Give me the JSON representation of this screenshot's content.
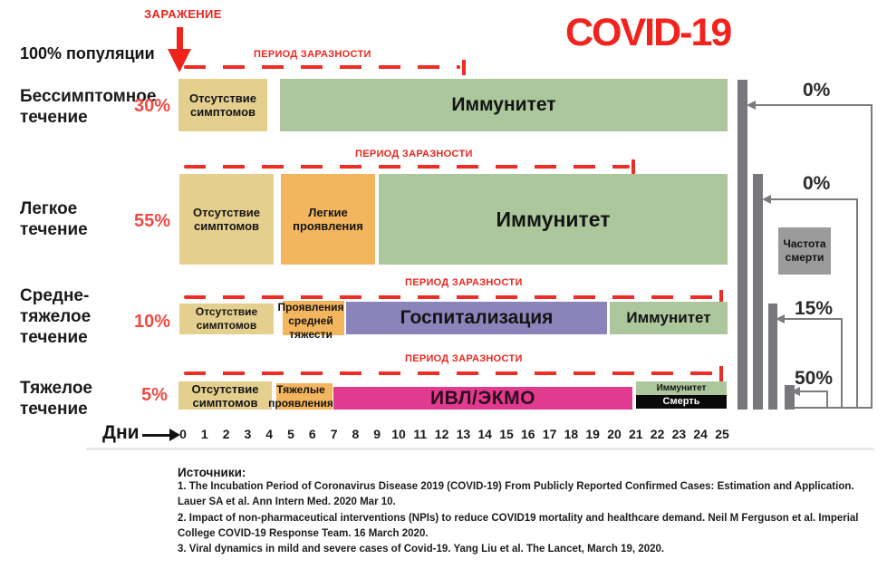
{
  "header": {
    "infection_label": "ЗАРАЖЕНИЕ",
    "population_label": "100% популяции",
    "title": "COVID-19"
  },
  "infectious_period_label": "ПЕРИОД ЗАРАЗНОСТИ",
  "rows": [
    {
      "label": "Бессимптомное\nтечение",
      "pct": "30%",
      "segments": [
        {
          "label": "Отсутствие\nсимптомов"
        },
        {
          "label": "Иммунитет"
        }
      ]
    },
    {
      "label": "Легкое\nтечение",
      "pct": "55%",
      "segments": [
        {
          "label": "Отсутствие\nсимптомов"
        },
        {
          "label": "Легкие\nпроявления"
        },
        {
          "label": "Иммунитет"
        }
      ]
    },
    {
      "label": "Средне-\nтяжелое\nтечение",
      "pct": "10%",
      "segments": [
        {
          "label": "Отсутствие\nсимптомов"
        },
        {
          "label": "Проявления\nсредней\nтяжести"
        },
        {
          "label": "Госпитализация"
        },
        {
          "label": "Иммунитет"
        }
      ]
    },
    {
      "label": "Тяжелое\nтечение",
      "pct": "5%",
      "segments": [
        {
          "label": "Отсутствие\nсимптомов"
        },
        {
          "label": "Тяжелые\nпроявления"
        },
        {
          "label": "ИВЛ/ЭКМО"
        },
        {
          "label": "Иммунитет"
        },
        {
          "label": "Смерть"
        }
      ]
    }
  ],
  "axis": {
    "label": "Дни",
    "days": [
      0,
      1,
      2,
      3,
      4,
      5,
      6,
      7,
      8,
      9,
      10,
      11,
      12,
      13,
      14,
      15,
      16,
      17,
      18,
      19,
      20,
      21,
      22,
      23,
      24,
      25
    ]
  },
  "death_chart": {
    "labels": [
      "0%",
      "0%",
      "15%",
      "50%"
    ],
    "legend": "Частота\nсмерти"
  },
  "sources": {
    "heading": "Источники:",
    "items": [
      "1. The Incubation Period of Coronavirus Disease 2019 (COVID-19) From Publicly Reported Confirmed Cases: Estimation and Application. Lauer SA et al. Ann Intern Med. 2020 Mar 10.",
      "2. Impact of non-pharmaceutical interventions (NPIs) to reduce COVID19 mortality and healthcare demand. Neil M Ferguson et al. Imperial College COVID-19 Response Team. 16 March 2020.",
      "3. Viral dynamics in mild and severe cases of Covid-19. Yang Liu et al. The Lancet, March 19, 2020."
    ]
  },
  "colors": {
    "accent_red": "#ee241c",
    "tan": "#e5cf8e",
    "orange": "#f3b55e",
    "green": "#abc79b",
    "purple": "#8a84ba",
    "magenta": "#e23a8e",
    "black_strip": "#0a0a0a",
    "bar_gray": "#77777c",
    "legend_gray": "#9b9b9b"
  },
  "chart_data": {
    "type": "bar",
    "subtype": "horizontal-gantt-timeline",
    "title": "COVID-19",
    "xlabel": "Дни",
    "x_range": [
      0,
      25
    ],
    "x_ticks": [
      0,
      1,
      2,
      3,
      4,
      5,
      6,
      7,
      8,
      9,
      10,
      11,
      12,
      13,
      14,
      15,
      16,
      17,
      18,
      19,
      20,
      21,
      22,
      23,
      24,
      25
    ],
    "population_total_label": "100% популяции",
    "infection_event_day": 0,
    "rows": [
      {
        "label": "Бессимптомное течение",
        "population_share_pct": 30,
        "death_rate_pct": 0,
        "infectious_period_days": [
          0,
          13
        ],
        "segments": [
          {
            "label": "Отсутствие симптомов",
            "start_day": 0,
            "end_day": 4,
            "color": "#e5cf8e"
          },
          {
            "label": "Иммунитет",
            "start_day": 4.5,
            "end_day": 25,
            "color": "#abc79b"
          }
        ]
      },
      {
        "label": "Легкое течение",
        "population_share_pct": 55,
        "death_rate_pct": 0,
        "infectious_period_days": [
          0,
          21
        ],
        "segments": [
          {
            "label": "Отсутствие симптомов",
            "start_day": 0,
            "end_day": 4.2,
            "color": "#e5cf8e"
          },
          {
            "label": "Легкие проявления",
            "start_day": 4.5,
            "end_day": 8.9,
            "color": "#f3b55e"
          },
          {
            "label": "Иммунитет",
            "start_day": 9,
            "end_day": 25,
            "color": "#abc79b"
          }
        ]
      },
      {
        "label": "Средне-тяжелое течение",
        "population_share_pct": 10,
        "death_rate_pct": 15,
        "infectious_period_days": [
          0,
          25
        ],
        "segments": [
          {
            "label": "Отсутствие симптомов",
            "start_day": 0,
            "end_day": 4.2,
            "color": "#e5cf8e"
          },
          {
            "label": "Проявления средней тяжести",
            "start_day": 4.6,
            "end_day": 7.5,
            "color": "#f3b55e"
          },
          {
            "label": "Госпитализация",
            "start_day": 7.6,
            "end_day": 19.7,
            "color": "#8a84ba"
          },
          {
            "label": "Иммунитет",
            "start_day": 19.8,
            "end_day": 25,
            "color": "#abc79b"
          }
        ]
      },
      {
        "label": "Тяжелое течение",
        "population_share_pct": 5,
        "death_rate_pct": 50,
        "infectious_period_days": [
          0,
          25
        ],
        "segments": [
          {
            "label": "Отсутствие симптомов",
            "start_day": 0,
            "end_day": 4.1,
            "color": "#e5cf8e"
          },
          {
            "label": "Тяжелые проявления",
            "start_day": 4.3,
            "end_day": 6.9,
            "color": "#f3b55e"
          },
          {
            "label": "ИВЛ/ЭКМО",
            "start_day": 7,
            "end_day": 20.8,
            "color": "#e23a8e"
          },
          {
            "label": "Иммунитет",
            "start_day": 21,
            "end_day": 25,
            "color": "#abc79b"
          },
          {
            "label": "Смерть",
            "start_day": 21,
            "end_day": 25,
            "color": "#0a0a0a"
          }
        ]
      }
    ],
    "death_rate_panel": {
      "legend": "Частота смерти",
      "values_pct": [
        0,
        0,
        15,
        50
      ]
    }
  }
}
